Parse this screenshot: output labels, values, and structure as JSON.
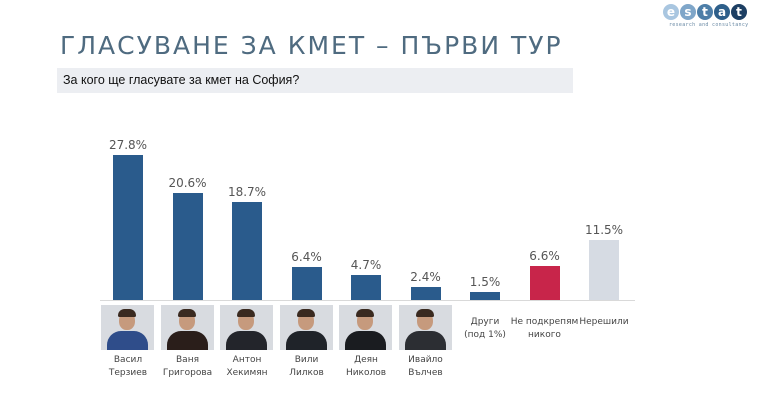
{
  "header": {
    "title": "ГЛАСУВАНЕ ЗА КМЕТ – ПЪРВИ ТУР",
    "subtitle": "За кого ще гласувате за кмет на София?"
  },
  "logo": {
    "letters": [
      "e",
      "s",
      "t",
      "a",
      "t"
    ],
    "colors": [
      "#a9c6e0",
      "#7fa6c9",
      "#4d7ea8",
      "#2e5f8a",
      "#1d3f63"
    ],
    "tagline": "research and consultancy"
  },
  "chart_data": {
    "type": "bar",
    "title": "За кого ще гласувате за кмет на София?",
    "categories": [
      "Васил Терзиев",
      "Ваня Григорова",
      "Антон Хекимян",
      "Вили Лилков",
      "Деян Николов",
      "Ивайло Вълчев",
      "Други (под 1%)",
      "Не подкрепям никого",
      "Нерешили"
    ],
    "values": [
      27.8,
      20.6,
      18.7,
      6.4,
      4.7,
      2.4,
      1.5,
      6.6,
      11.5
    ],
    "value_labels": [
      "27.8%",
      "20.6%",
      "18.7%",
      "6.4%",
      "4.7%",
      "2.4%",
      "1.5%",
      "6.6%",
      "11.5%"
    ],
    "colors": [
      "#2a5b8c",
      "#2a5b8c",
      "#2a5b8c",
      "#2a5b8c",
      "#2a5b8c",
      "#2a5b8c",
      "#2a5b8c",
      "#c8254a",
      "#d6dbe3"
    ],
    "xlabel": "",
    "ylabel": "",
    "ylim": [
      0,
      30
    ],
    "grid": false,
    "legend": "none",
    "unit": "%"
  },
  "candidates": [
    {
      "first": "Васил",
      "last": "Терзиев",
      "photo": "candidate-photo",
      "shirt": "#2f4d8a"
    },
    {
      "first": "Ваня",
      "last": "Григорова",
      "photo": "candidate-photo",
      "shirt": "#2a1e1a"
    },
    {
      "first": "Антон",
      "last": "Хекимян",
      "photo": "candidate-photo",
      "shirt": "#23252b"
    },
    {
      "first": "Вили",
      "last": "Лилков",
      "photo": "candidate-photo",
      "shirt": "#1f2329"
    },
    {
      "first": "Деян",
      "last": "Николов",
      "photo": "candidate-photo",
      "shirt": "#1a1c20"
    },
    {
      "first": "Ивайло",
      "last": "Вълчев",
      "photo": "candidate-photo",
      "shirt": "#2c2e33"
    }
  ],
  "other_labels": [
    {
      "line1": "Други",
      "line2": "(под 1%)"
    },
    {
      "line1": "Не подкрепям",
      "line2": "никого"
    },
    {
      "line1": "Нерешили",
      "line2": ""
    }
  ]
}
